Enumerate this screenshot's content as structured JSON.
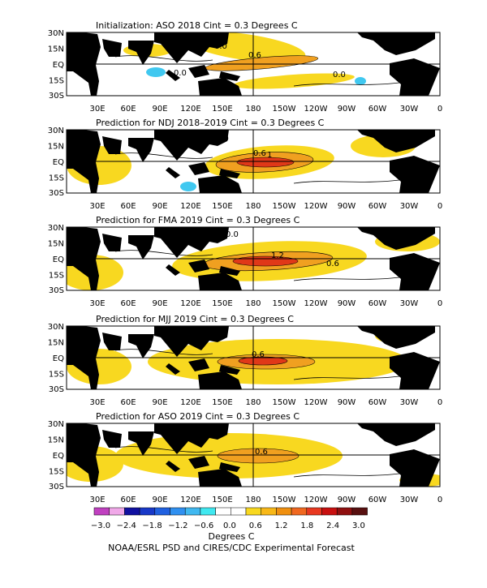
{
  "panels": [
    {
      "title": "Initialization: ASO 2018   Cint = 0.3 Degrees C",
      "contour_labels": [
        "0.0",
        "0.6",
        "0.0",
        "0.0"
      ]
    },
    {
      "title": "Prediction for NDJ 2018–2019   Cint = 0.3 Degrees C",
      "contour_labels": [
        "0.0",
        "0.6",
        "1"
      ]
    },
    {
      "title": "Prediction for FMA 2019   Cint = 0.3 Degrees C",
      "contour_labels": [
        "0.0",
        "1.2",
        "0.6"
      ]
    },
    {
      "title": "Prediction for MJJ 2019   Cint = 0.3 Degrees C",
      "contour_labels": [
        "0.6"
      ]
    },
    {
      "title": "Prediction for ASO 2019   Cint = 0.3 Degrees C",
      "contour_labels": [
        "0.6"
      ]
    }
  ],
  "lat_labels": [
    "30N",
    "15N",
    "EQ",
    "15S",
    "30S"
  ],
  "lon_labels": [
    "30E",
    "60E",
    "90E",
    "120E",
    "150E",
    "180",
    "150W",
    "120W",
    "90W",
    "60W",
    "30W",
    "0"
  ],
  "colorbar": {
    "colors": [
      "#c040c0",
      "#f0a8e8",
      "#1010a0",
      "#1838c8",
      "#2060e0",
      "#3090f0",
      "#40b8f0",
      "#40e8f0",
      "#ffffff",
      "#ffffff",
      "#f8d820",
      "#f8b818",
      "#f09010",
      "#f06820",
      "#e83820",
      "#c81010",
      "#901010",
      "#581010"
    ],
    "tick_labels": [
      "−3.0",
      "−2.4",
      "−1.8",
      "−1.2",
      "−0.6",
      "0.0",
      "0.6",
      "1.2",
      "1.8",
      "2.4",
      "3.0"
    ],
    "unit_label": "Degrees C"
  },
  "footer": "NOAA/ESRL PSD and CIRES/CDC Experimental Forecast"
}
